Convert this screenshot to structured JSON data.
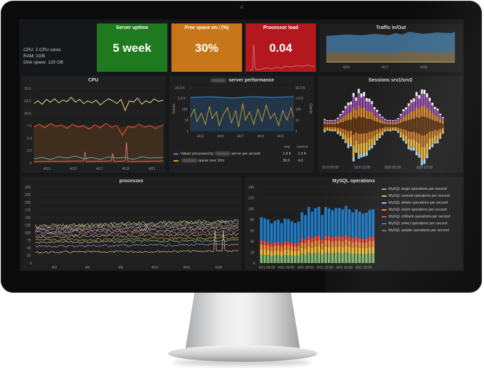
{
  "system_info": {
    "cpu": "CPU: 2 CPU cores",
    "ram": "RAM: 1GB",
    "disk": "Disk space: 120 GB"
  },
  "stats": [
    {
      "title": "Server uptime",
      "value": "5 week",
      "color": "#1f7a1f"
    },
    {
      "title": "Free space on / (%)",
      "value": "30%",
      "color": "#c7761a"
    },
    {
      "title": "Processor load",
      "value": "0.04",
      "color": "#b3181e"
    }
  ],
  "traffic": {
    "title": "Traffic In/Out",
    "x_labels": [
      "4/15",
      "4/17",
      "4/19"
    ]
  },
  "cpu": {
    "title": "CPU",
    "y_labels": [
      "15.0",
      "12.5",
      "10.0",
      "7.5",
      "5.0",
      "2.5",
      "0"
    ],
    "x_labels": [
      "4/13",
      "4/15",
      "4/17",
      "4/19",
      "4/21"
    ]
  },
  "server_perf": {
    "title_suffix": "server performance",
    "y_left": [
      "10.0 K",
      "1.0 K",
      "100",
      "10",
      "1"
    ],
    "y_right": [
      "10.0 K",
      "1.0 K",
      "100",
      "10",
      "1"
    ],
    "y_left_label": "Values",
    "y_right_label": "Queue",
    "x_labels": [
      "4/13",
      "4/15",
      "4/17",
      "4/19",
      "4/21"
    ],
    "legend_header_avg": "avg",
    "legend_header_current": "current",
    "legend": [
      {
        "prefix": "Values processed by",
        "suffix": "server per second",
        "avg": "1.8 K",
        "current": "1.9 K",
        "color": "#3b8fd8"
      },
      {
        "prefix": "",
        "suffix": "queue over 10m",
        "avg": "30.6",
        "current": "4.0",
        "color": "#d6a227"
      }
    ]
  },
  "sessions": {
    "title": "Sessions srv1/srv2",
    "x_labels": [
      "3/19 00:00",
      "3/19 12:00",
      "3/20 00:00",
      "3/20 12:00"
    ]
  },
  "processes": {
    "title": "processes",
    "y_labels": [
      "250",
      "225",
      "200",
      "175",
      "150",
      "125",
      "100",
      "75",
      "50",
      "25",
      "0"
    ],
    "x_labels": [
      "4/3",
      "4/6",
      "4/9",
      "4/12",
      "4/15",
      "4/18"
    ]
  },
  "mysql": {
    "title": "MySQL operations",
    "y_labels": [
      "140",
      "120",
      "100",
      "80",
      "60",
      "40",
      "20",
      "0"
    ],
    "x_labels": [
      "4/21 00:00",
      "4/21 04:00",
      "4/21 08:00",
      "4/21 12:00",
      "4/21 16:00",
      "4/21 20:00"
    ],
    "legend": [
      {
        "label": "MySQL begin operations per second",
        "color": "#7eb26d"
      },
      {
        "label": "MySQL commit operations per second",
        "color": "#eab839"
      },
      {
        "label": "MySQL delete operations per second",
        "color": "#6ed0e0"
      },
      {
        "label": "MySQL insert operations per second",
        "color": "#ef843c"
      },
      {
        "label": "MySQL rollback operations per second",
        "color": "#e24d42"
      },
      {
        "label": "MySQL select operations per second",
        "color": "#1f78c1"
      },
      {
        "label": "MySQL update operations per second",
        "color": "#508642"
      }
    ]
  }
}
